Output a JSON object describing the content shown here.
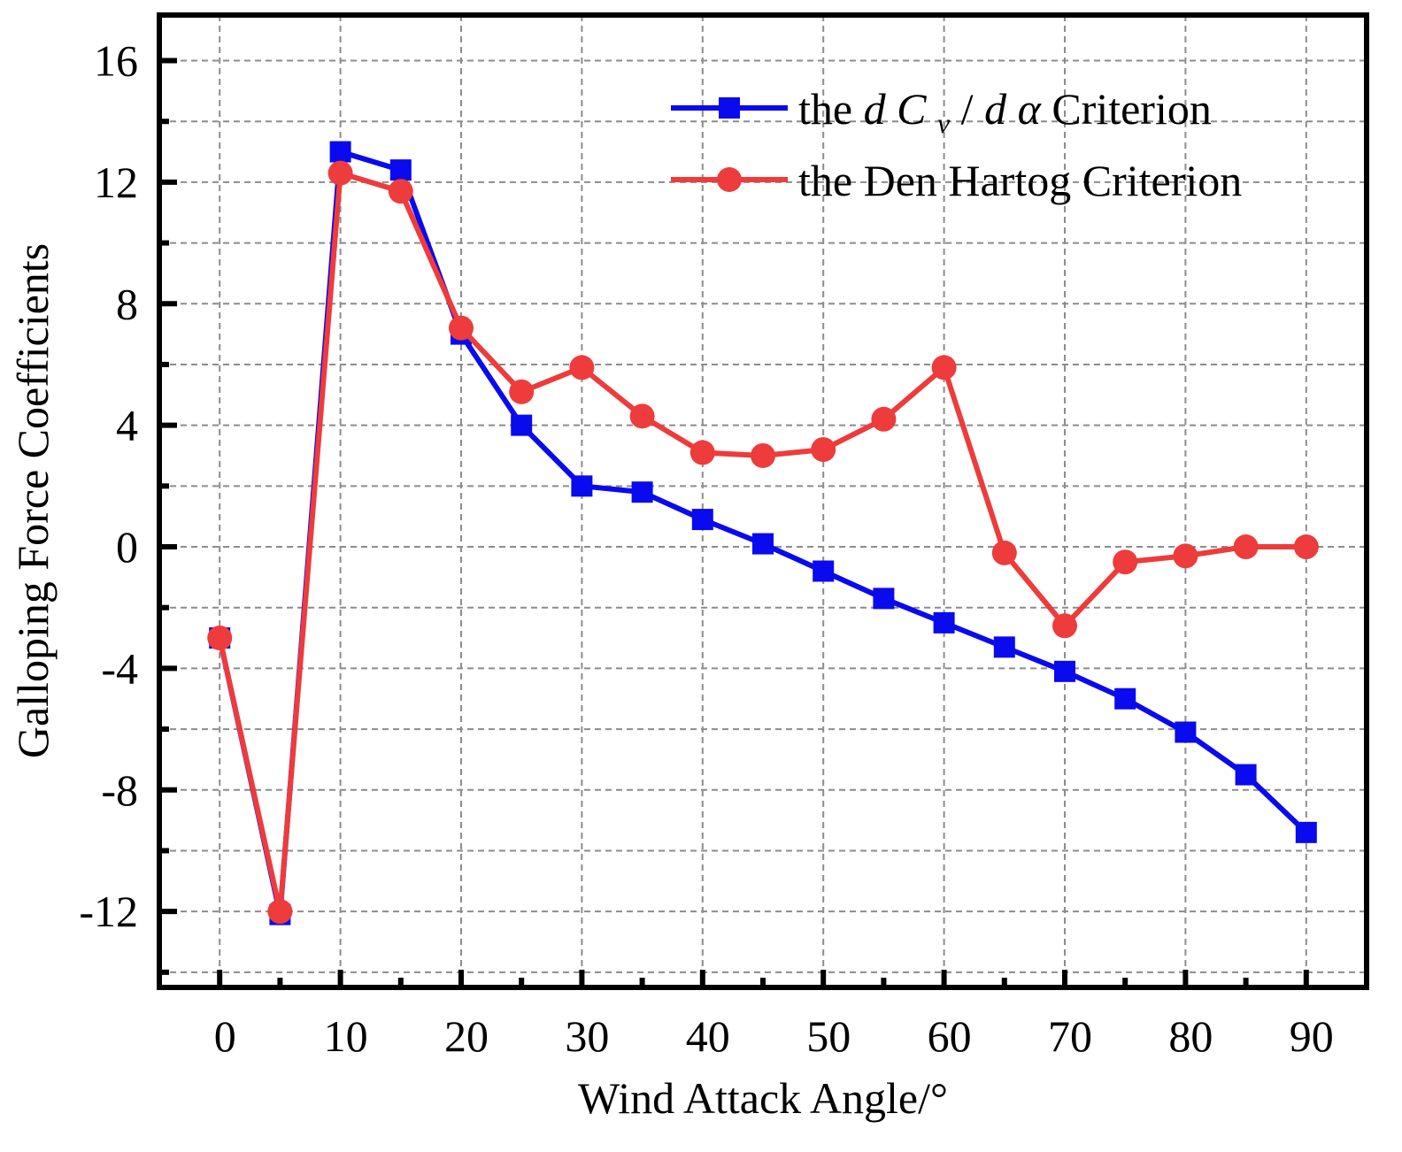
{
  "chart_data": {
    "type": "line",
    "title": "",
    "xlabel": "Wind Attack Angle/°",
    "ylabel": "Galloping Force Coefficients",
    "xlim": [
      -5,
      95
    ],
    "ylim": [
      -14.5,
      17.5
    ],
    "x_ticks": [
      0,
      10,
      20,
      30,
      40,
      50,
      60,
      70,
      80,
      90
    ],
    "x_tick_labels": [
      "0",
      "10",
      "20",
      "30",
      "40",
      "50",
      "60",
      "70",
      "80",
      "90"
    ],
    "y_ticks": [
      -12,
      -8,
      -4,
      0,
      4,
      8,
      12,
      16
    ],
    "y_tick_labels": [
      "-12",
      "-8",
      "-4",
      "0",
      "4",
      "8",
      "12",
      "16"
    ],
    "grid": true,
    "legend_position": "top-right",
    "x": [
      0,
      5,
      10,
      15,
      20,
      25,
      30,
      35,
      40,
      45,
      50,
      55,
      60,
      65,
      70,
      75,
      80,
      85,
      90
    ],
    "series": [
      {
        "name": "the dCv/dα Criterion",
        "legend": {
          "prefix": "the ",
          "d1": "d",
          "c": "C",
          "sub": "v",
          "slash": "/",
          "d2": "d",
          "alpha": "α",
          "suffix": "Criterion"
        },
        "color": "#0a0aee",
        "marker": "square",
        "values": [
          -3.0,
          -12.1,
          13.0,
          12.4,
          7.0,
          4.0,
          2.0,
          1.8,
          0.9,
          0.1,
          -0.8,
          -1.7,
          -2.5,
          -3.3,
          -4.1,
          -5.0,
          -6.1,
          -7.5,
          -9.4
        ]
      },
      {
        "name": "the Den Hartog Criterion",
        "color": "#ee3b3b",
        "marker": "circle",
        "values": [
          -3.0,
          -12.0,
          12.3,
          11.7,
          7.2,
          5.1,
          5.9,
          4.3,
          3.1,
          3.0,
          3.2,
          4.2,
          5.9,
          -0.2,
          -2.6,
          -0.5,
          -0.3,
          0.0,
          0.0
        ]
      }
    ]
  }
}
